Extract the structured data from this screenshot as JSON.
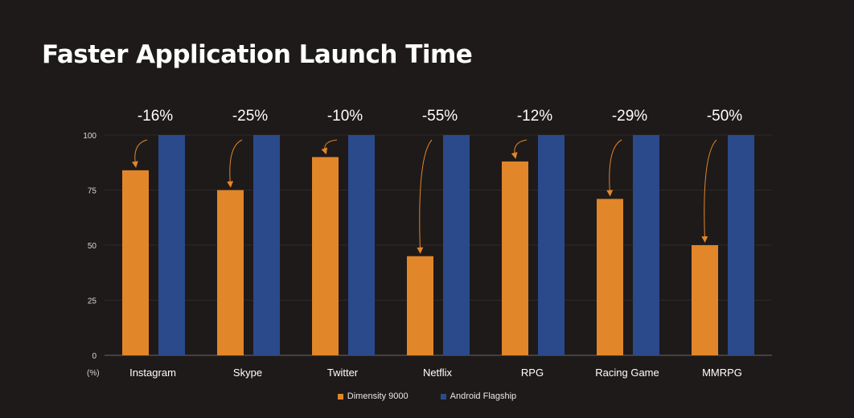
{
  "chart_data": {
    "type": "bar",
    "title": "Faster Application Launch Time",
    "ylabel": "(%)",
    "ylim": [
      0,
      100
    ],
    "yticks": [
      0,
      25,
      50,
      75,
      100
    ],
    "grid": true,
    "legend_position": "bottom",
    "categories": [
      "Instagram",
      "Skype",
      "Twitter",
      "Netflix",
      "RPG",
      "Racing Game",
      "MMRPG"
    ],
    "series": [
      {
        "name": "Dimensity 9000",
        "color": "#e2862a",
        "values": [
          84,
          75,
          90,
          45,
          88,
          71,
          50
        ]
      },
      {
        "name": "Android Flagship",
        "color": "#2b4a8c",
        "values": [
          100,
          100,
          100,
          100,
          100,
          100,
          100
        ]
      }
    ],
    "annotations": [
      "-16%",
      "-25%",
      "-10%",
      "-55%",
      "-12%",
      "-29%",
      "-50%"
    ]
  }
}
